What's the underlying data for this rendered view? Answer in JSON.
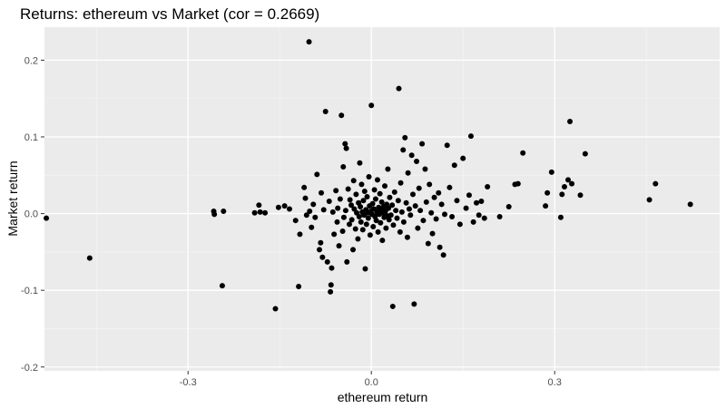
{
  "chart_data": {
    "type": "scatter",
    "title": "Returns: ethereum vs Market (cor = 0.2669)",
    "xlabel": "ethereum return",
    "ylabel": "Market return",
    "xlim": [
      -0.535,
      0.57
    ],
    "ylim": [
      -0.205,
      0.243
    ],
    "xticks": [
      -0.3,
      0.0,
      0.3
    ],
    "xtick_labels": [
      "-0.3",
      "0.0",
      "0.3"
    ],
    "yticks": [
      -0.2,
      -0.1,
      0.0,
      0.1,
      0.2
    ],
    "ytick_labels": [
      "-0.2",
      "-0.1",
      "0.0",
      "0.1",
      "0.2"
    ],
    "grid": true,
    "colors": {
      "panel": "#ebebeb",
      "grid_major": "#ffffff",
      "grid_minor": "#f4f4f4",
      "point": "#000000"
    },
    "points": [
      [
        -0.532,
        -0.006
      ],
      [
        -0.461,
        -0.058
      ],
      [
        -0.258,
        0.003
      ],
      [
        -0.257,
        -0.001
      ],
      [
        -0.242,
        0.003
      ],
      [
        -0.244,
        -0.094
      ],
      [
        -0.191,
        0.001
      ],
      [
        -0.184,
        0.011
      ],
      [
        -0.182,
        0.002
      ],
      [
        -0.174,
        0.001
      ],
      [
        -0.157,
        -0.124
      ],
      [
        -0.152,
        0.008
      ],
      [
        -0.142,
        0.01
      ],
      [
        -0.134,
        0.006
      ],
      [
        -0.124,
        -0.009
      ],
      [
        -0.119,
        -0.095
      ],
      [
        -0.117,
        -0.027
      ],
      [
        -0.11,
        0.034
      ],
      [
        -0.108,
        0.02
      ],
      [
        -0.106,
        -0.002
      ],
      [
        -0.102,
        0.224
      ],
      [
        -0.101,
        0.003
      ],
      [
        -0.098,
        -0.018
      ],
      [
        -0.095,
        0.012
      ],
      [
        -0.092,
        -0.005
      ],
      [
        -0.089,
        0.051
      ],
      [
        -0.085,
        -0.047
      ],
      [
        -0.083,
        -0.038
      ],
      [
        -0.082,
        0.027
      ],
      [
        -0.08,
        -0.057
      ],
      [
        -0.078,
        0.005
      ],
      [
        -0.075,
        0.133
      ],
      [
        -0.072,
        -0.063
      ],
      [
        -0.069,
        0.016
      ],
      [
        -0.067,
        -0.102
      ],
      [
        -0.066,
        -0.093
      ],
      [
        -0.065,
        -0.071
      ],
      [
        -0.063,
        0.002
      ],
      [
        -0.061,
        -0.027
      ],
      [
        -0.058,
        0.03
      ],
      [
        -0.056,
        -0.011
      ],
      [
        -0.055,
        0.007
      ],
      [
        -0.053,
        -0.042
      ],
      [
        -0.051,
        0.019
      ],
      [
        -0.049,
        0.128
      ],
      [
        -0.047,
        -0.023
      ],
      [
        -0.046,
        0.061
      ],
      [
        -0.045,
        -0.005
      ],
      [
        -0.043,
        0.091
      ],
      [
        -0.042,
        0.004
      ],
      [
        -0.041,
        0.085
      ],
      [
        -0.04,
        -0.063
      ],
      [
        -0.038,
        0.032
      ],
      [
        -0.036,
        -0.014
      ],
      [
        -0.035,
        0.018
      ],
      [
        -0.033,
        0.011
      ],
      [
        -0.032,
        -0.008
      ],
      [
        -0.03,
        -0.047
      ],
      [
        -0.029,
        0.043
      ],
      [
        -0.028,
        0.006
      ],
      [
        -0.026,
        -0.02
      ],
      [
        -0.025,
        0.025
      ],
      [
        -0.024,
        0.001
      ],
      [
        -0.022,
        -0.033
      ],
      [
        -0.021,
        0.014
      ],
      [
        -0.02,
        -0.004
      ],
      [
        -0.019,
        0.066
      ],
      [
        -0.018,
        0.009
      ],
      [
        -0.017,
        -0.011
      ],
      [
        -0.016,
        0.038
      ],
      [
        -0.015,
        0.002
      ],
      [
        -0.014,
        -0.021
      ],
      [
        -0.013,
        0.017
      ],
      [
        -0.012,
        -0.002
      ],
      [
        -0.011,
        0.029
      ],
      [
        -0.01,
        -0.072
      ],
      [
        -0.009,
        0.005
      ],
      [
        -0.008,
        -0.014
      ],
      [
        -0.007,
        0.022
      ],
      [
        -0.006,
        0.001
      ],
      [
        -0.005,
        -0.006
      ],
      [
        -0.004,
        0.048
      ],
      [
        -0.003,
        0.01
      ],
      [
        -0.002,
        -0.028
      ],
      [
        -0.001,
        0.003
      ],
      [
        0.0,
        0.141
      ],
      [
        0.001,
        -0.001
      ],
      [
        0.002,
        0.013
      ],
      [
        0.003,
        -0.017
      ],
      [
        0.004,
        0.006
      ],
      [
        0.005,
        0.031
      ],
      [
        0.006,
        -0.004
      ],
      [
        0.007,
        0.019
      ],
      [
        0.008,
        -0.009
      ],
      [
        0.009,
        0.002
      ],
      [
        0.01,
        0.044
      ],
      [
        0.011,
        -0.024
      ],
      [
        0.012,
        0.008
      ],
      [
        0.013,
        -0.001
      ],
      [
        0.014,
        0.026
      ],
      [
        0.015,
        -0.012
      ],
      [
        0.016,
        0.004
      ],
      [
        0.017,
        0.015
      ],
      [
        0.018,
        -0.035
      ],
      [
        0.019,
        0.001
      ],
      [
        0.02,
        0.009
      ],
      [
        0.021,
        -0.005
      ],
      [
        0.022,
        0.036
      ],
      [
        0.023,
        0.003
      ],
      [
        0.024,
        -0.019
      ],
      [
        0.025,
        0.012
      ],
      [
        0.026,
        -0.003
      ],
      [
        0.027,
        0.058
      ],
      [
        0.028,
        0.007
      ],
      [
        0.029,
        -0.008
      ],
      [
        0.03,
        0.021
      ],
      [
        0.032,
        -0.002
      ],
      [
        0.034,
        0.011
      ],
      [
        0.035,
        -0.121
      ],
      [
        0.036,
        -0.015
      ],
      [
        0.038,
        0.028
      ],
      [
        0.04,
        0.004
      ],
      [
        0.042,
        -0.006
      ],
      [
        0.044,
        0.017
      ],
      [
        0.045,
        0.163
      ],
      [
        0.047,
        -0.024
      ],
      [
        0.048,
        0.04
      ],
      [
        0.05,
        0.002
      ],
      [
        0.052,
        0.083
      ],
      [
        0.053,
        -0.011
      ],
      [
        0.055,
        0.099
      ],
      [
        0.057,
        0.014
      ],
      [
        0.059,
        -0.031
      ],
      [
        0.06,
        0.053
      ],
      [
        0.062,
        0.006
      ],
      [
        0.064,
        -0.002
      ],
      [
        0.066,
        0.076
      ],
      [
        0.068,
        0.025
      ],
      [
        0.07,
        -0.118
      ],
      [
        0.072,
        0.01
      ],
      [
        0.074,
        0.068
      ],
      [
        0.076,
        -0.019
      ],
      [
        0.078,
        0.033
      ],
      [
        0.08,
        0.004
      ],
      [
        0.083,
        0.091
      ],
      [
        0.085,
        -0.009
      ],
      [
        0.088,
        0.058
      ],
      [
        0.09,
        0.015
      ],
      [
        0.093,
        -0.039
      ],
      [
        0.095,
        0.038
      ],
      [
        0.098,
        0.001
      ],
      [
        0.1,
        -0.026
      ],
      [
        0.103,
        0.021
      ],
      [
        0.106,
        -0.007
      ],
      [
        0.11,
        0.027
      ],
      [
        0.112,
        -0.044
      ],
      [
        0.115,
        0.012
      ],
      [
        0.118,
        -0.054
      ],
      [
        0.12,
        -0.001
      ],
      [
        0.124,
        0.089
      ],
      [
        0.128,
        0.034
      ],
      [
        0.132,
        -0.004
      ],
      [
        0.136,
        0.063
      ],
      [
        0.14,
        0.017
      ],
      [
        0.145,
        -0.014
      ],
      [
        0.15,
        0.072
      ],
      [
        0.155,
        0.007
      ],
      [
        0.16,
        0.024
      ],
      [
        0.163,
        0.101
      ],
      [
        0.167,
        -0.011
      ],
      [
        0.172,
        0.014
      ],
      [
        0.176,
        -0.002
      ],
      [
        0.18,
        0.016
      ],
      [
        0.185,
        -0.006
      ],
      [
        0.19,
        0.035
      ],
      [
        0.21,
        -0.004
      ],
      [
        0.225,
        0.009
      ],
      [
        0.235,
        0.038
      ],
      [
        0.24,
        0.039
      ],
      [
        0.248,
        0.079
      ],
      [
        0.285,
        0.01
      ],
      [
        0.288,
        0.027
      ],
      [
        0.295,
        0.054
      ],
      [
        0.31,
        -0.005
      ],
      [
        0.312,
        0.025
      ],
      [
        0.316,
        0.035
      ],
      [
        0.322,
        0.044
      ],
      [
        0.325,
        0.12
      ],
      [
        0.328,
        0.039
      ],
      [
        0.342,
        0.024
      ],
      [
        0.35,
        0.078
      ],
      [
        0.455,
        0.018
      ],
      [
        0.465,
        0.039
      ],
      [
        0.522,
        0.012
      ]
    ]
  }
}
